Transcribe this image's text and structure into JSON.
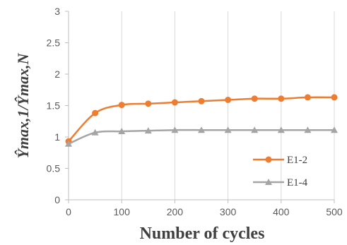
{
  "chart_data": {
    "type": "line",
    "xlabel": "Number of cycles",
    "ylabel": "Ŷmax,1/Ŷmax,N",
    "xlim": [
      0,
      500
    ],
    "ylim": [
      0,
      3
    ],
    "x_ticks": [
      "0",
      "100",
      "200",
      "300",
      "400",
      "500"
    ],
    "y_ticks": [
      "0",
      "0.5",
      "1",
      "1.5",
      "2",
      "2.5",
      "3"
    ],
    "grid": "vertical",
    "legend_position": "bottom-right",
    "series": [
      {
        "name": "E1-2",
        "color": "#ED7D31",
        "marker": "circle",
        "x": [
          0,
          50,
          100,
          150,
          200,
          250,
          300,
          350,
          400,
          450,
          500
        ],
        "y": [
          0.93,
          1.38,
          1.51,
          1.53,
          1.55,
          1.57,
          1.59,
          1.61,
          1.61,
          1.63,
          1.63
        ]
      },
      {
        "name": "E1-4",
        "color": "#A5A5A5",
        "marker": "triangle",
        "x": [
          0,
          50,
          100,
          150,
          200,
          250,
          300,
          350,
          400,
          450,
          500
        ],
        "y": [
          0.89,
          1.07,
          1.09,
          1.1,
          1.11,
          1.11,
          1.11,
          1.11,
          1.11,
          1.11,
          1.11
        ]
      }
    ]
  }
}
